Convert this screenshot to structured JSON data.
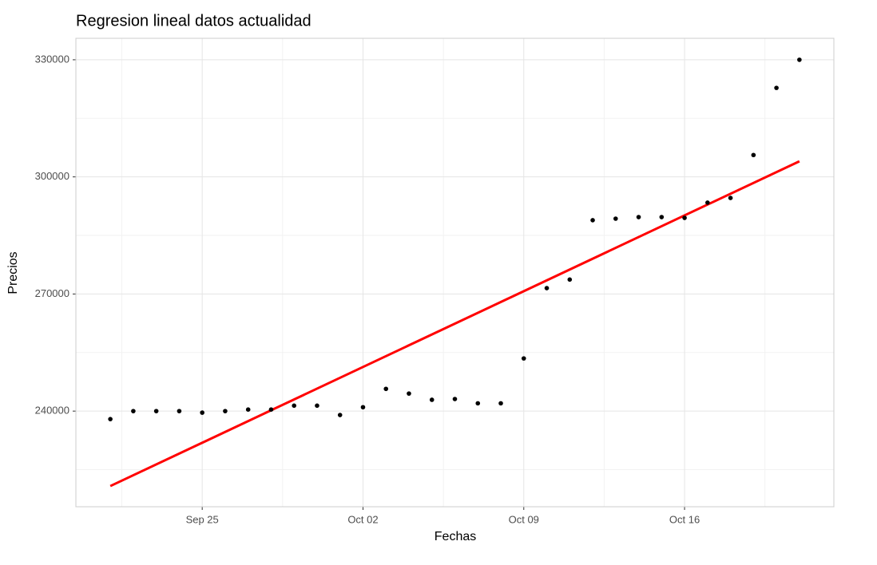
{
  "chart_data": {
    "type": "scatter",
    "title": "Regresion lineal datos actualidad",
    "x_label": "Fechas",
    "y_label": "Precios",
    "series": [
      {
        "color": "#000000",
        "x": [
          "Sep 21",
          "Sep 22",
          "Sep 23",
          "Sep 24",
          "Sep 25",
          "Sep 26",
          "Sep 27",
          "Sep 28",
          "Sep 29",
          "Sep 30",
          "Oct 01",
          "Oct 02",
          "Oct 03",
          "Oct 04",
          "Oct 05",
          "Oct 06",
          "Oct 07",
          "Oct 08",
          "Oct 09",
          "Oct 10",
          "Oct 11",
          "Oct 12",
          "Oct 13",
          "Oct 14",
          "Oct 15",
          "Oct 16",
          "Oct 17",
          "Oct 18",
          "Oct 19",
          "Oct 20",
          "Oct 21"
        ],
        "values": [
          237950,
          240000,
          240000,
          240000,
          239600,
          240000,
          240400,
          240400,
          241400,
          241400,
          239000,
          241000,
          245700,
          244500,
          242900,
          243100,
          242000,
          242000,
          253500,
          271500,
          273700,
          288900,
          289300,
          289700,
          289700,
          289500,
          293400,
          294600,
          305600,
          322800,
          330000
        ]
      }
    ],
    "trend_line": {
      "color": "#ff0000",
      "x": [
        "Sep 21",
        "Oct 21"
      ],
      "values": [
        220800,
        304000
      ]
    },
    "xlim": [
      "Sep 19.5",
      "Oct 22.5"
    ],
    "xticks": [
      "Sep 25",
      "Oct 02",
      "Oct 09",
      "Oct 16"
    ],
    "ylim": [
      215500,
      335500
    ],
    "yticks": [
      240000,
      270000,
      300000,
      330000
    ],
    "grid": true
  }
}
